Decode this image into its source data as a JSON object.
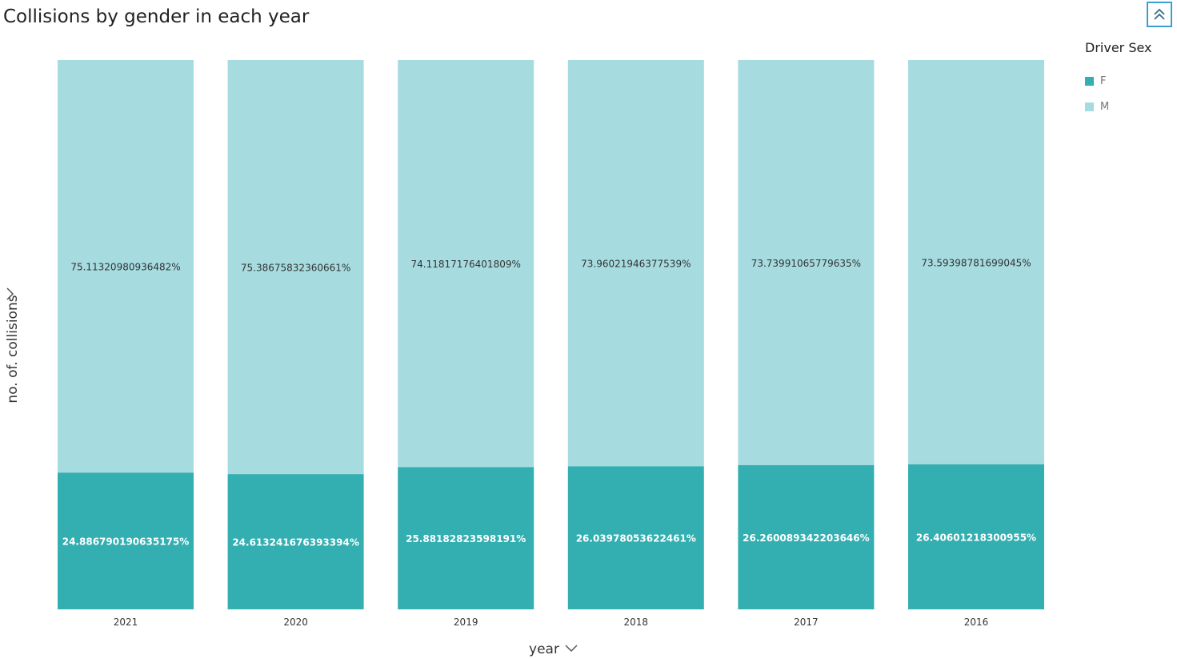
{
  "title": "Collisions by gender in each year",
  "legend": {
    "title": "Driver Sex",
    "items": [
      {
        "label": "F",
        "color": "#33aeb1"
      },
      {
        "label": "M",
        "color": "#a6dbe0"
      }
    ]
  },
  "icons": {
    "collapse": "double-chevron-up-icon",
    "axis_dropdown": "chevron-down-icon"
  },
  "chart_data": {
    "type": "bar",
    "stacked": "percent",
    "title": "Collisions by gender in each year",
    "xlabel": "year",
    "ylabel": "no. of. collisions",
    "categories": [
      "2021",
      "2020",
      "2019",
      "2018",
      "2017",
      "2016"
    ],
    "series": [
      {
        "name": "F",
        "color": "#33aeb1",
        "values": [
          24.886790190635175,
          24.613241676393393,
          25.88182823598191,
          26.03978053622461,
          26.260089342203646,
          26.40601218300955
        ],
        "labels": [
          "24.886790190635175%",
          "24.613241676393394%",
          "25.88182823598191%",
          "26.03978053622461%",
          "26.260089342203646%",
          "26.40601218300955%"
        ]
      },
      {
        "name": "M",
        "color": "#a6dbe0",
        "values": [
          75.11320980936482,
          75.38675832360661,
          74.11817176401809,
          73.96021946377539,
          73.73991065779634,
          73.59398781699045
        ],
        "labels": [
          "75.11320980936482%",
          "75.38675832360661%",
          "74.11817176401809%",
          "73.96021946377539%",
          "73.73991065779635%",
          "73.59398781699045%"
        ]
      }
    ],
    "ylim": [
      0,
      100
    ],
    "grid": false,
    "legend_position": "top-right"
  }
}
